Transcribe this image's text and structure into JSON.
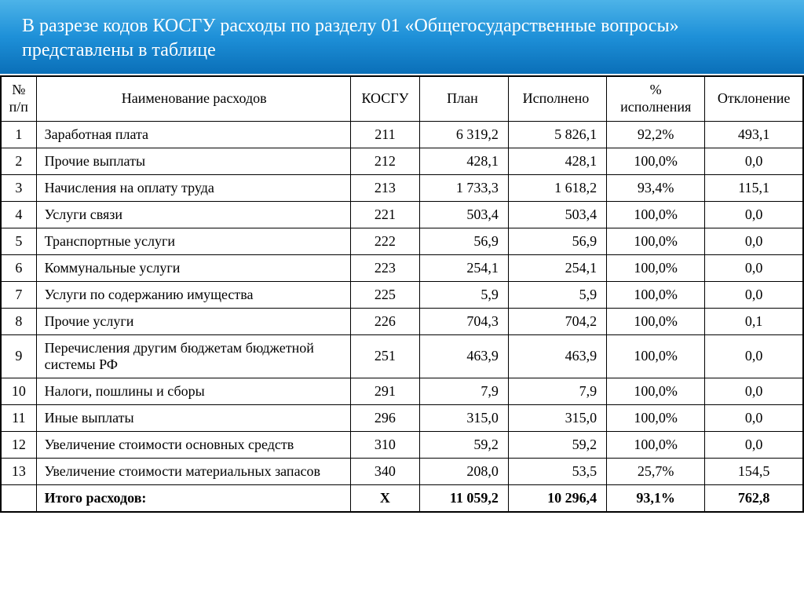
{
  "header": {
    "title_line1": "В разрезе кодов КОСГУ расходы по разделу 01 «Общегосударственные вопросы»",
    "title_line2": "представлены в таблице"
  },
  "table": {
    "columns": {
      "num": "№ п/п",
      "name": "Наименование расходов",
      "kosgu": "КОСГУ",
      "plan": "План",
      "executed": "Исполнено",
      "pct": "% исполнения",
      "deviation": "Отклонение"
    },
    "rows": [
      {
        "num": "1",
        "name": "Заработная плата",
        "kosgu": "211",
        "plan": "6 319,2",
        "exec": "5 826,1",
        "pct": "92,2%",
        "dev": "493,1",
        "tall": false
      },
      {
        "num": "2",
        "name": "Прочие выплаты",
        "kosgu": "212",
        "plan": "428,1",
        "exec": "428,1",
        "pct": "100,0%",
        "dev": "0,0",
        "tall": false
      },
      {
        "num": "3",
        "name": "Начисления на оплату труда",
        "kosgu": "213",
        "plan": "1 733,3",
        "exec": "1 618,2",
        "pct": "93,4%",
        "dev": "115,1",
        "tall": false
      },
      {
        "num": "4",
        "name": "Услуги связи",
        "kosgu": "221",
        "plan": "503,4",
        "exec": "503,4",
        "pct": "100,0%",
        "dev": "0,0",
        "tall": false
      },
      {
        "num": "5",
        "name": "Транспортные услуги",
        "kosgu": "222",
        "plan": "56,9",
        "exec": "56,9",
        "pct": "100,0%",
        "dev": "0,0",
        "tall": false
      },
      {
        "num": "6",
        "name": "Коммунальные услуги",
        "kosgu": "223",
        "plan": "254,1",
        "exec": "254,1",
        "pct": "100,0%",
        "dev": "0,0",
        "tall": false
      },
      {
        "num": "7",
        "name": "Услуги по содержанию имущества",
        "kosgu": "225",
        "plan": "5,9",
        "exec": "5,9",
        "pct": "100,0%",
        "dev": "0,0",
        "tall": false
      },
      {
        "num": "8",
        "name": "Прочие услуги",
        "kosgu": "226",
        "plan": "704,3",
        "exec": "704,2",
        "pct": "100,0%",
        "dev": "0,1",
        "tall": false
      },
      {
        "num": "9",
        "name": "Перечисления другим бюджетам бюджетной системы РФ",
        "kosgu": "251",
        "plan": "463,9",
        "exec": "463,9",
        "pct": "100,0%",
        "dev": "0,0",
        "tall": true
      },
      {
        "num": "10",
        "name": "Налоги, пошлины и сборы",
        "kosgu": "291",
        "plan": "7,9",
        "exec": "7,9",
        "pct": "100,0%",
        "dev": "0,0",
        "tall": false
      },
      {
        "num": "11",
        "name": "Иные выплаты",
        "kosgu": "296",
        "plan": "315,0",
        "exec": "315,0",
        "pct": "100,0%",
        "dev": "0,0",
        "tall": false
      },
      {
        "num": "12",
        "name": "Увеличение стоимости основных средств",
        "kosgu": "310",
        "plan": "59,2",
        "exec": "59,2",
        "pct": "100,0%",
        "dev": "0,0",
        "tall": false
      },
      {
        "num": "13",
        "name": "Увеличение стоимости материальных запасов",
        "kosgu": "340",
        "plan": "208,0",
        "exec": "53,5",
        "pct": "25,7%",
        "dev": "154,5",
        "tall": false
      }
    ],
    "total": {
      "num": "",
      "name": "Итого расходов:",
      "kosgu": "X",
      "plan": "11 059,2",
      "exec": "10 296,4",
      "pct": "93,1%",
      "dev": "762,8"
    }
  },
  "styling": {
    "type": "table",
    "header_gradient_top": "#4db3e8",
    "header_gradient_mid": "#1e90d8",
    "header_gradient_bottom": "#0a6fb8",
    "header_text_color": "#ffffff",
    "header_fontsize": 24,
    "border_color": "#000000",
    "border_width": 1.5,
    "cell_fontsize": 18,
    "background_color": "#ffffff",
    "font_family": "Times New Roman"
  }
}
